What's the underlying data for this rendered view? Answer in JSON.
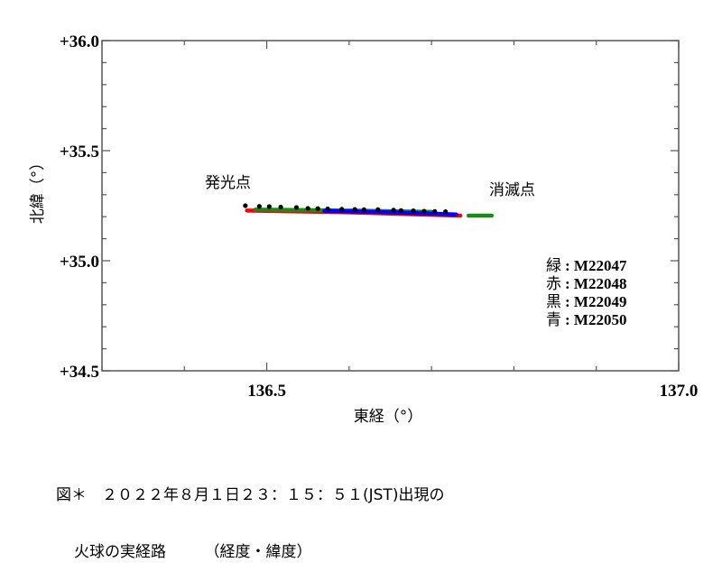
{
  "chart_data": {
    "type": "scatter",
    "title": "",
    "xlabel": "東経（°）",
    "ylabel": "北緯（°）",
    "xlim": [
      136.3,
      137.0
    ],
    "ylim": [
      34.5,
      36.0
    ],
    "x_major_ticks": [
      136.5,
      137.0
    ],
    "x_tick_labels": [
      "136.5",
      "137.0"
    ],
    "x_minor_step": 0.1,
    "y_major_ticks": [
      36.0,
      35.5,
      35.0,
      34.5
    ],
    "y_tick_labels": [
      "+36.0",
      "+35.5",
      "+35.0",
      "+34.5"
    ],
    "y_minor_step": 0.1,
    "grid": false,
    "annotations": [
      {
        "text": "発光点",
        "x": 136.42,
        "y": 35.33
      },
      {
        "text": "消滅点",
        "x": 136.77,
        "y": 35.3
      }
    ],
    "legend": {
      "position": "lower-right",
      "entries": [
        {
          "color_name": "緑",
          "label": "M22047",
          "color": "#1a8a1a"
        },
        {
          "color_name": "赤",
          "label": "M22048",
          "color": "#ff0000"
        },
        {
          "color_name": "黒",
          "label": "M22049",
          "color": "#000000"
        },
        {
          "color_name": "青",
          "label": "M22050",
          "color": "#0000ff"
        }
      ]
    },
    "series": [
      {
        "name": "M22047",
        "color": "#1a8a1a",
        "style": "dense-line",
        "segments": [
          {
            "x": [
              136.486,
              136.6,
              136.7
            ],
            "y": [
              35.232,
              35.228,
              35.222
            ]
          },
          {
            "x": [
              136.745,
              136.773
            ],
            "y": [
              35.205,
              35.205
            ]
          }
        ]
      },
      {
        "name": "M22048",
        "color": "#ff0000",
        "style": "dense-line",
        "segments": [
          {
            "x": [
              136.476,
              136.6,
              136.735
            ],
            "y": [
              35.228,
              35.22,
              35.205
            ]
          }
        ]
      },
      {
        "name": "M22049",
        "color": "#000000",
        "style": "dots",
        "x": [
          136.474,
          136.491,
          136.503,
          136.517,
          136.536,
          136.55,
          136.562,
          136.574,
          136.591,
          136.607,
          136.618,
          136.635,
          136.654,
          136.663,
          136.678,
          136.691,
          136.704,
          136.717
        ],
        "y": [
          35.25,
          35.247,
          35.246,
          35.244,
          35.242,
          35.238,
          35.237,
          35.236,
          35.234,
          35.233,
          35.232,
          35.232,
          35.23,
          35.228,
          35.227,
          35.225,
          35.224,
          35.223
        ]
      },
      {
        "name": "M22050",
        "color": "#0000ff",
        "style": "dense-line",
        "segments": [
          {
            "x": [
              136.57,
              136.65,
              136.73
            ],
            "y": [
              35.226,
              35.22,
              35.21
            ]
          }
        ]
      }
    ]
  },
  "caption": {
    "line1": "図＊　２０２２年８月１日２３：１５：５１(JST)出現の",
    "line2": "火球の実経路　　　（経度・緯度）"
  }
}
